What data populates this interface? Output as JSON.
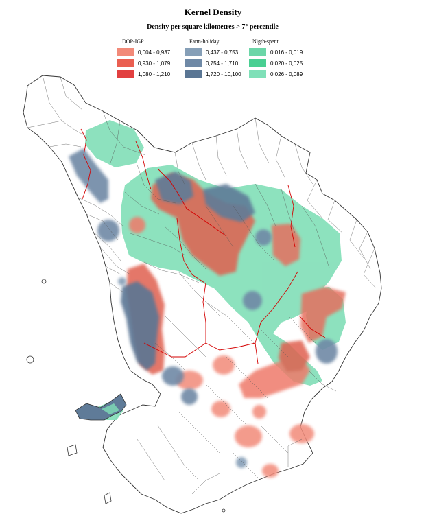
{
  "title": "Kernel Density",
  "subtitle": "Density per square kilometres > 7° percentile",
  "legend": {
    "groups": [
      {
        "name": "DOP-IGP",
        "classes": [
          {
            "range": "0,004 - 0,937",
            "color": "#f28a79"
          },
          {
            "range": "0,930 - 1,079",
            "color": "#ea5f51"
          },
          {
            "range": "1,080 - 1,210",
            "color": "#e24040"
          }
        ]
      },
      {
        "name": "Farm-holiday",
        "classes": [
          {
            "range": "0,437 - 0,753",
            "color": "#869fb7"
          },
          {
            "range": "0,754 - 1,710",
            "color": "#6f89a6"
          },
          {
            "range": "1,720 - 10,100",
            "color": "#5a7694"
          }
        ]
      },
      {
        "name": "Nigth-spent",
        "classes": [
          {
            "range": "0,016 - 0,019",
            "color": "#6cd6a8"
          },
          {
            "range": "0,020 - 0,025",
            "color": "#49cf92"
          },
          {
            "range": "0,026 - 0,089",
            "color": "#7fe0b8"
          }
        ]
      }
    ]
  },
  "colors": {
    "green_layer": "#87e0bb",
    "red_layer": "#e06150",
    "blue_layer": "#5f7b98",
    "boundary": "#555555",
    "province_boundary": "#d40000"
  }
}
